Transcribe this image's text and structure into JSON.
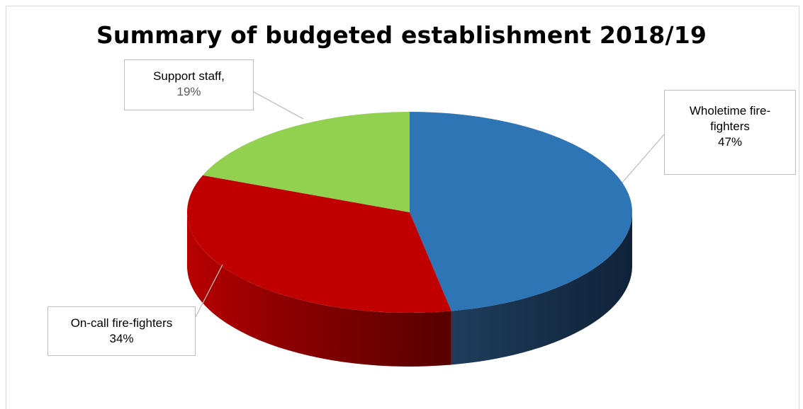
{
  "chart_data": {
    "type": "pie",
    "title": "Summary of budgeted establishment 2018/19",
    "style": "3d",
    "slices": [
      {
        "label": "Wholetime fire-fighters",
        "value": 47,
        "percent_label": "47%",
        "color": "#2e75b6"
      },
      {
        "label": "On-call fire-fighters",
        "value": 34,
        "percent_label": "34%",
        "color": "#c00000"
      },
      {
        "label": "Support staff",
        "value": 19,
        "percent_label": "19%",
        "color": "#92d050"
      }
    ],
    "data_labels": {
      "wholetime": {
        "line1": "Wholetime fire-",
        "line2": "fighters",
        "pct": "47%"
      },
      "oncall": {
        "line1": "On-call fire-fighters",
        "pct": "34%"
      },
      "support": {
        "line1": "Support staff,",
        "pct": "19%"
      }
    },
    "legend": "none"
  }
}
